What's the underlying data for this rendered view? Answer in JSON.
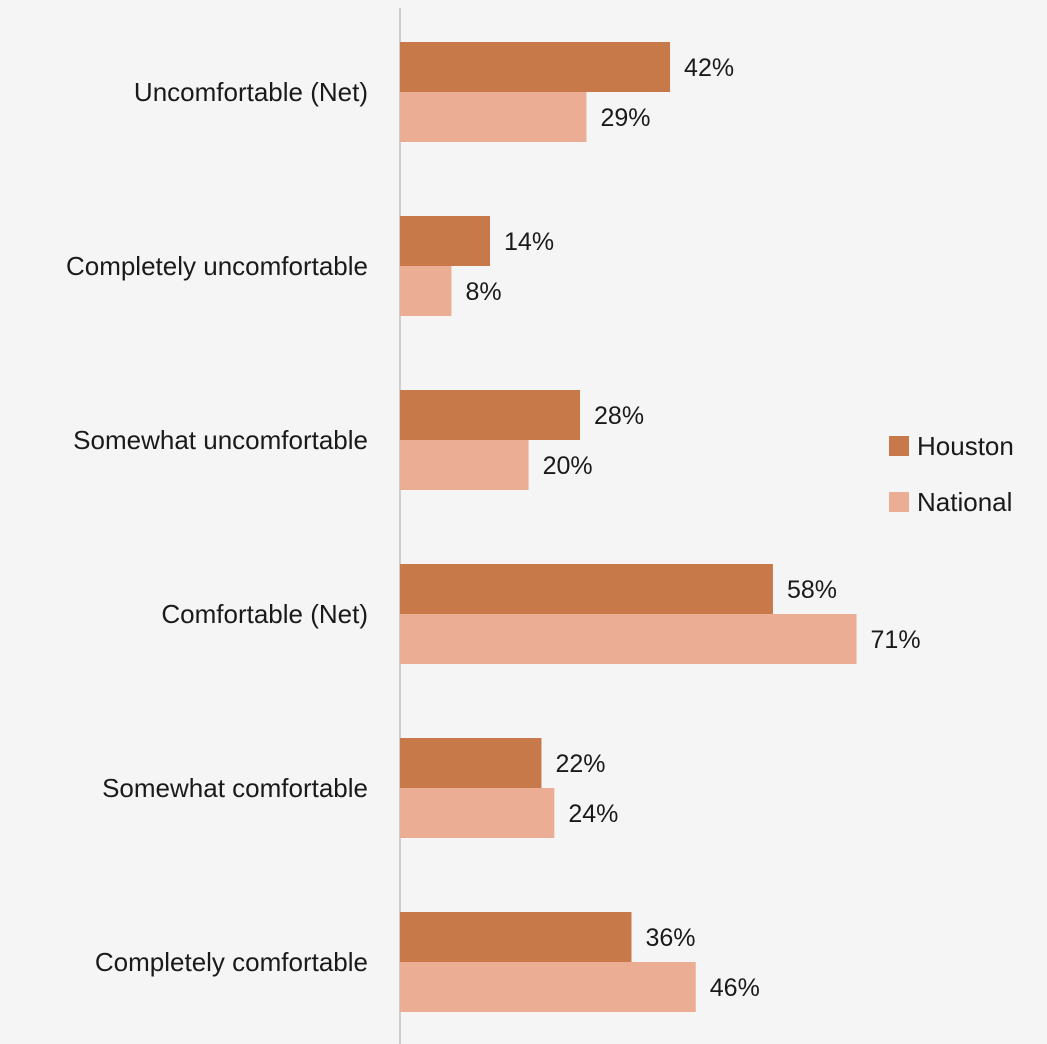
{
  "chart_data": {
    "type": "bar",
    "orientation": "horizontal",
    "categories": [
      "Uncomfortable (Net)",
      "Completely uncomfortable",
      "Somewhat uncomfortable",
      "Comfortable (Net)",
      "Somewhat comfortable",
      "Completely comfortable"
    ],
    "series": [
      {
        "name": "Houston",
        "values": [
          42,
          14,
          28,
          58,
          22,
          36
        ],
        "labels": [
          "42%",
          "14%",
          "28%",
          "58%",
          "22%",
          "36%"
        ],
        "color": "#c8794a"
      },
      {
        "name": "National",
        "values": [
          29,
          8,
          20,
          71,
          24,
          46
        ],
        "labels": [
          "29%",
          "8%",
          "20%",
          "71%",
          "24%",
          "46%"
        ],
        "color": "#ebae94"
      }
    ],
    "xlim": [
      0,
      100
    ],
    "grid": false,
    "legend_position": "right"
  }
}
